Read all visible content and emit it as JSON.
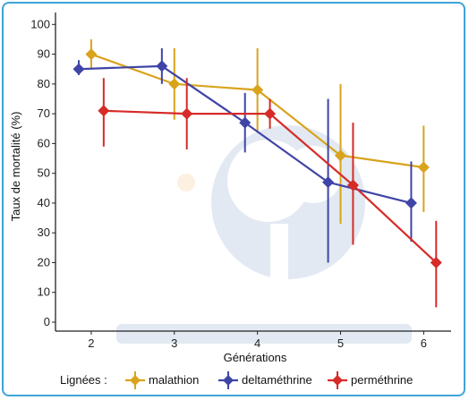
{
  "chart_data": {
    "type": "line",
    "ylabel": "Taux de mortalité (%)",
    "xlabel": "Générations",
    "x": [
      2,
      3,
      4,
      5,
      6
    ],
    "xlim": [
      1.57,
      6.33
    ],
    "ylim": [
      -3,
      104
    ],
    "yticks": [
      0,
      10,
      20,
      30,
      40,
      50,
      60,
      70,
      80,
      90,
      100
    ],
    "legend": {
      "title": "Lignées :",
      "position": "bottom"
    },
    "series": [
      {
        "name": "malathion",
        "color": "#d9a31c",
        "points": [
          {
            "x": 2.0,
            "y": 90,
            "lo": 85,
            "hi": 95
          },
          {
            "x": 3.0,
            "y": 80,
            "lo": 68,
            "hi": 92
          },
          {
            "x": 4.0,
            "y": 78,
            "lo": 64,
            "hi": 92
          },
          {
            "x": 5.0,
            "y": 56,
            "lo": 33,
            "hi": 80
          },
          {
            "x": 6.0,
            "y": 52,
            "lo": 37,
            "hi": 66
          }
        ]
      },
      {
        "name": "deltaméthrine",
        "color": "#3f45a6",
        "points": [
          {
            "x": 1.85,
            "y": 85,
            "lo": 83,
            "hi": 88
          },
          {
            "x": 2.85,
            "y": 86,
            "lo": 80,
            "hi": 92
          },
          {
            "x": 3.85,
            "y": 67,
            "lo": 57,
            "hi": 77
          },
          {
            "x": 4.85,
            "y": 47,
            "lo": 20,
            "hi": 75
          },
          {
            "x": 5.85,
            "y": 40,
            "lo": 27,
            "hi": 54
          }
        ]
      },
      {
        "name": "perméthrine",
        "color": "#d62b28",
        "points": [
          {
            "x": 2.15,
            "y": 71,
            "lo": 59,
            "hi": 82
          },
          {
            "x": 3.15,
            "y": 70,
            "lo": 58,
            "hi": 82
          },
          {
            "x": 4.15,
            "y": 70,
            "lo": 65,
            "hi": 75
          },
          {
            "x": 5.15,
            "y": 46,
            "lo": 26,
            "hi": 67
          },
          {
            "x": 6.15,
            "y": 20,
            "lo": 5,
            "hi": 34
          }
        ]
      }
    ]
  }
}
